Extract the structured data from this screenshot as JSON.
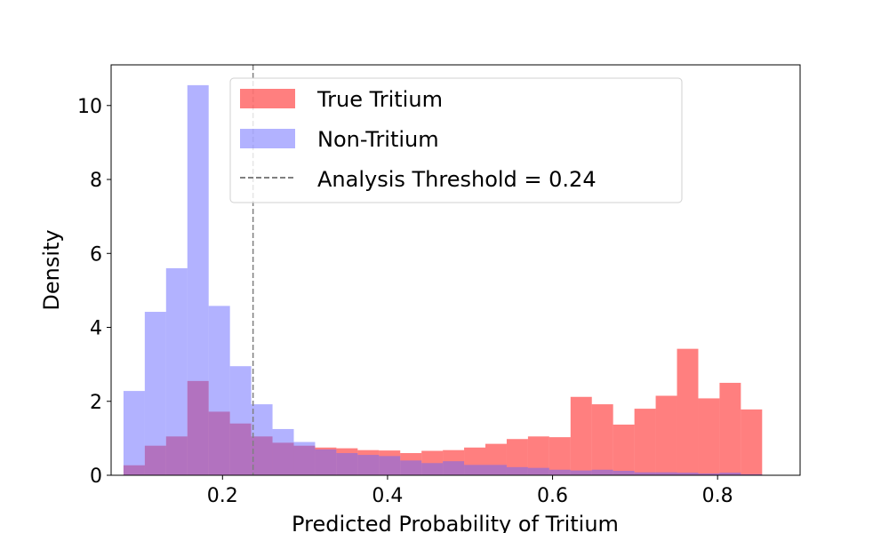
{
  "chart_data": {
    "type": "histogram",
    "xlabel": "Predicted Probability of Tritium",
    "ylabel": "Density",
    "xlim": [
      0.065,
      0.9
    ],
    "ylim": [
      0,
      11.1
    ],
    "xticks": [
      0.2,
      0.4,
      0.6,
      0.8
    ],
    "yticks": [
      0,
      2,
      4,
      6,
      8,
      10
    ],
    "grid": false,
    "legend_position": "top-center",
    "bin_edges": [
      0.08,
      0.1058,
      0.1316,
      0.1574,
      0.1832,
      0.209,
      0.2348,
      0.2606,
      0.2864,
      0.3122,
      0.338,
      0.3638,
      0.3896,
      0.4154,
      0.4412,
      0.467,
      0.4928,
      0.5186,
      0.5444,
      0.5702,
      0.596,
      0.6218,
      0.6476,
      0.6734,
      0.6992,
      0.725,
      0.7508,
      0.7766,
      0.8024,
      0.8282,
      0.854
    ],
    "series": [
      {
        "name": "True Tritium",
        "color": "#ff0000",
        "opacity": 0.5,
        "values": [
          0.27,
          0.8,
          1.05,
          2.55,
          1.72,
          1.4,
          1.05,
          0.88,
          0.8,
          0.75,
          0.73,
          0.68,
          0.67,
          0.6,
          0.66,
          0.68,
          0.75,
          0.85,
          0.98,
          1.05,
          1.03,
          2.12,
          1.92,
          1.37,
          1.8,
          2.15,
          3.42,
          2.08,
          2.5,
          1.78
        ]
      },
      {
        "name": "Non-Tritium",
        "color": "#6666ff",
        "opacity": 0.5,
        "values": [
          2.28,
          4.42,
          5.6,
          10.55,
          4.58,
          2.95,
          1.92,
          1.25,
          0.9,
          0.7,
          0.6,
          0.55,
          0.52,
          0.4,
          0.33,
          0.38,
          0.28,
          0.28,
          0.22,
          0.2,
          0.15,
          0.13,
          0.15,
          0.12,
          0.08,
          0.08,
          0.07,
          0.05,
          0.07,
          0.03
        ]
      }
    ],
    "threshold": {
      "label": "Analysis Threshold = 0.24",
      "value": 0.237,
      "color": "#808080",
      "style": "dashed"
    }
  }
}
